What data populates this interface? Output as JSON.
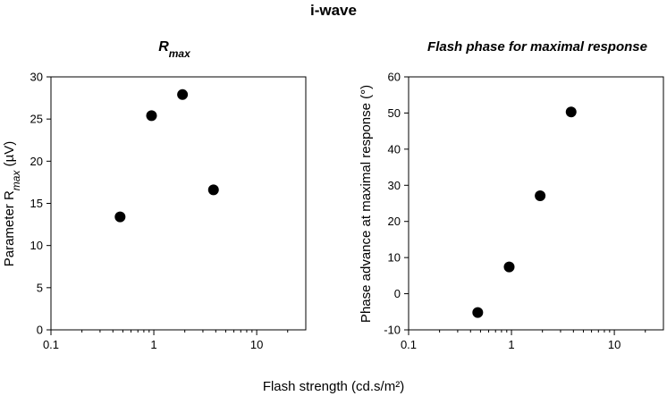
{
  "figure_title": "i-wave",
  "common_xlabel": "Flash strength (cd.s/m²)",
  "chart_data": [
    {
      "type": "scatter",
      "title": "R",
      "title_sub": "max",
      "xlabel": "Flash strength (cd.s/m²)",
      "ylabel": "Parameter R",
      "ylabel_sub": "max",
      "ylabel_suffix": " (µV)",
      "xscale": "log",
      "xlim": [
        0.1,
        30
      ],
      "ylim": [
        0,
        30
      ],
      "xticks": [
        0.1,
        1,
        10
      ],
      "xtick_labels": [
        "0.1",
        "1",
        "10"
      ],
      "yticks": [
        0,
        5,
        10,
        15,
        20,
        25,
        30
      ],
      "ytick_labels": [
        "0",
        "5",
        "10",
        "15",
        "20",
        "25",
        "30"
      ],
      "grid": false,
      "marker_color": "#000000",
      "points": [
        {
          "x": 0.47,
          "y": 13.4
        },
        {
          "x": 0.95,
          "y": 25.4
        },
        {
          "x": 1.9,
          "y": 27.9
        },
        {
          "x": 3.8,
          "y": 16.6
        }
      ]
    },
    {
      "type": "scatter",
      "title": "Flash phase for maximal response",
      "xlabel": "Flash strength (cd.s/m²)",
      "ylabel": "Phase advance at maximal response (°)",
      "xscale": "log",
      "xlim": [
        0.1,
        30
      ],
      "ylim": [
        -10,
        60
      ],
      "xticks": [
        0.1,
        1,
        10
      ],
      "xtick_labels": [
        "0.1",
        "1",
        "10"
      ],
      "yticks": [
        -10,
        0,
        10,
        20,
        30,
        40,
        50,
        60
      ],
      "ytick_labels": [
        "-10",
        "0",
        "10",
        "20",
        "30",
        "40",
        "50",
        "60"
      ],
      "grid": false,
      "marker_color": "#000000",
      "points": [
        {
          "x": 0.47,
          "y": -5.2
        },
        {
          "x": 0.95,
          "y": 7.4
        },
        {
          "x": 1.9,
          "y": 27.1
        },
        {
          "x": 3.8,
          "y": 50.3
        }
      ]
    }
  ]
}
